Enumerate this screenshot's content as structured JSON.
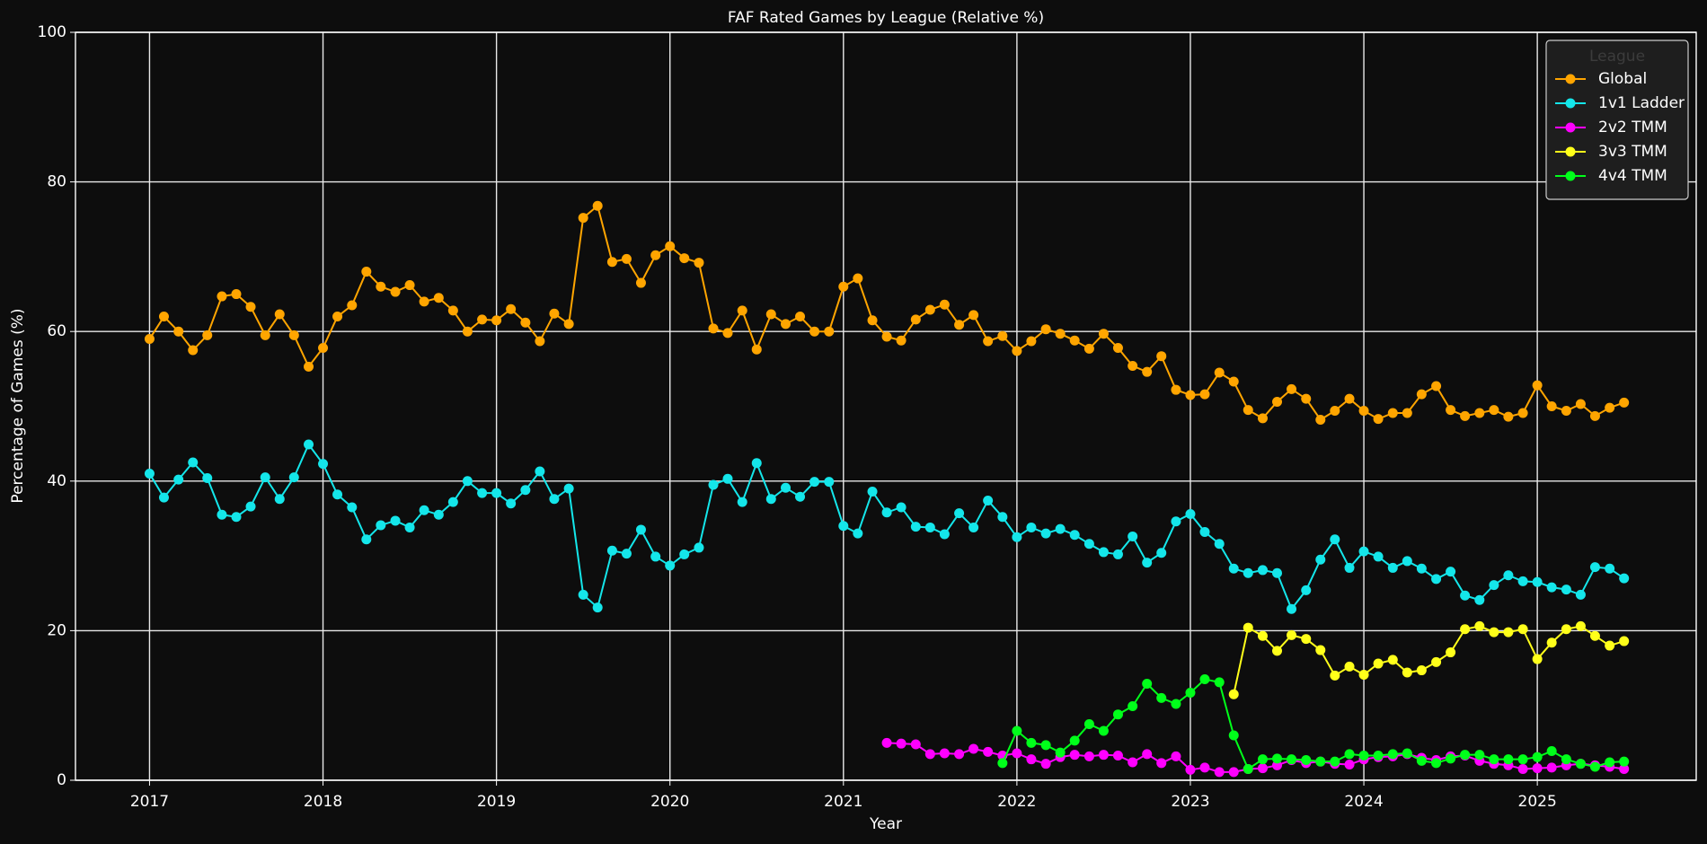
{
  "chart_data": {
    "type": "line",
    "title": "FAF Rated Games by League (Relative %)",
    "x_label": "Year",
    "y_label": "Percentage of Games (%)",
    "xlim": [
      2016.573,
      2025.916
    ],
    "ylim": [
      0,
      100
    ],
    "xticks": [
      2017,
      2018,
      2019,
      2020,
      2021,
      2022,
      2023,
      2024,
      2025
    ],
    "yticks": [
      0,
      20,
      40,
      60,
      80,
      100
    ],
    "grid": true,
    "legend_title": "League",
    "legend_loc": "upper right",
    "x": [
      2017,
      2017.083,
      2017.167,
      2017.25,
      2017.333,
      2017.417,
      2017.5,
      2017.583,
      2017.667,
      2017.75,
      2017.833,
      2017.917,
      2018,
      2018.083,
      2018.167,
      2018.25,
      2018.333,
      2018.417,
      2018.5,
      2018.583,
      2018.667,
      2018.75,
      2018.833,
      2018.917,
      2019,
      2019.083,
      2019.167,
      2019.25,
      2019.333,
      2019.417,
      2019.5,
      2019.583,
      2019.667,
      2019.75,
      2019.833,
      2019.917,
      2020,
      2020.083,
      2020.167,
      2020.25,
      2020.333,
      2020.417,
      2020.5,
      2020.583,
      2020.667,
      2020.75,
      2020.833,
      2020.917,
      2021,
      2021.083,
      2021.167,
      2021.25,
      2021.333,
      2021.417,
      2021.5,
      2021.583,
      2021.667,
      2021.75,
      2021.833,
      2021.917,
      2022,
      2022.083,
      2022.167,
      2022.25,
      2022.333,
      2022.417,
      2022.5,
      2022.583,
      2022.667,
      2022.75,
      2022.833,
      2022.917,
      2023,
      2023.083,
      2023.167,
      2023.25,
      2023.333,
      2023.417,
      2023.5,
      2023.583,
      2023.667,
      2023.75,
      2023.833,
      2023.917,
      2024,
      2024.083,
      2024.167,
      2024.25,
      2024.333,
      2024.417,
      2024.5,
      2024.583,
      2024.667,
      2024.75,
      2024.833,
      2024.917,
      2025,
      2025.083,
      2025.167,
      2025.25,
      2025.333,
      2025.417,
      2025.5
    ],
    "series": [
      {
        "name": "Global",
        "color": "#ffa500",
        "values": [
          59,
          62,
          60,
          57.5,
          59.5,
          64.7,
          65,
          63.3,
          59.5,
          62.3,
          59.5,
          55.3,
          57.8,
          62,
          63.5,
          68,
          66,
          65.3,
          66.2,
          64,
          64.5,
          62.8,
          60,
          61.6,
          61.5,
          63,
          61.2,
          58.7,
          62.4,
          61,
          75.2,
          76.8,
          69.3,
          69.7,
          66.5,
          70.2,
          71.4,
          69.8,
          69.2,
          60.4,
          59.8,
          62.8,
          57.6,
          62.3,
          61,
          62,
          60,
          60,
          66,
          67.1,
          61.5,
          59.3,
          58.8,
          61.6,
          62.9,
          63.6,
          60.9,
          62.2,
          58.7,
          59.4,
          57.4,
          58.7,
          60.3,
          59.7,
          58.8,
          57.7,
          59.7,
          57.8,
          55.4,
          54.6,
          56.7,
          52.2,
          51.5,
          51.6,
          54.5,
          53.3,
          49.5,
          48.4,
          50.6,
          52.3,
          51,
          48.2,
          49.4,
          51,
          49.4,
          48.3,
          49.1,
          49.1,
          51.6,
          52.7,
          49.5,
          48.7,
          49.1,
          49.5,
          48.6,
          49.1,
          52.8,
          50,
          49.4,
          50.3,
          48.7,
          49.8,
          50.5
        ]
      },
      {
        "name": "1v1 Ladder",
        "color": "#14e6ea",
        "values": [
          41,
          37.8,
          40.2,
          42.5,
          40.4,
          35.5,
          35.2,
          36.6,
          40.5,
          37.6,
          40.5,
          44.9,
          42.3,
          38.2,
          36.5,
          32.2,
          34.1,
          34.7,
          33.8,
          36.1,
          35.5,
          37.2,
          40,
          38.4,
          38.4,
          37,
          38.8,
          41.3,
          37.6,
          39,
          24.8,
          23.1,
          30.7,
          30.3,
          33.5,
          29.9,
          28.7,
          30.2,
          31.1,
          39.5,
          40.3,
          37.2,
          42.4,
          37.6,
          39.1,
          37.9,
          39.9,
          39.9,
          34,
          33,
          38.6,
          35.8,
          36.5,
          33.9,
          33.8,
          32.9,
          35.7,
          33.8,
          37.4,
          35.2,
          32.5,
          33.8,
          33,
          33.6,
          32.8,
          31.6,
          30.5,
          30.2,
          32.6,
          29.1,
          30.4,
          34.6,
          35.6,
          33.2,
          31.6,
          28.3,
          27.7,
          28.1,
          27.7,
          22.9,
          25.4,
          29.5,
          32.2,
          28.4,
          30.6,
          29.9,
          28.4,
          29.3,
          28.3,
          26.9,
          27.9,
          24.7,
          24.1,
          26.1,
          27.4,
          26.6,
          26.5,
          25.8,
          25.5,
          24.8,
          28.5,
          28.3,
          27
        ]
      },
      {
        "name": "2v2 TMM",
        "color": "#ff00ff",
        "values": [
          null,
          null,
          null,
          null,
          null,
          null,
          null,
          null,
          null,
          null,
          null,
          null,
          null,
          null,
          null,
          null,
          null,
          null,
          null,
          null,
          null,
          null,
          null,
          null,
          null,
          null,
          null,
          null,
          null,
          null,
          null,
          null,
          null,
          null,
          null,
          null,
          null,
          null,
          null,
          null,
          null,
          null,
          null,
          null,
          null,
          null,
          null,
          null,
          null,
          null,
          null,
          5,
          4.9,
          4.8,
          3.5,
          3.6,
          3.5,
          4.2,
          3.8,
          3.3,
          3.6,
          2.8,
          2.2,
          3.1,
          3.4,
          3.2,
          3.4,
          3.3,
          2.4,
          3.5,
          2.3,
          3.2,
          1.4,
          1.7,
          1.1,
          1.1,
          1.5,
          1.6,
          2,
          2.7,
          2.3,
          2.5,
          2.2,
          2.1,
          2.8,
          3.1,
          3.2,
          3.5,
          3,
          2.7,
          3.2,
          3.3,
          2.6,
          2.2,
          2,
          1.5,
          1.6,
          1.7,
          2,
          2.2,
          2,
          1.8,
          1.5
        ]
      },
      {
        "name": "3v3 TMM",
        "color": "#ffff1a",
        "values": [
          null,
          null,
          null,
          null,
          null,
          null,
          null,
          null,
          null,
          null,
          null,
          null,
          null,
          null,
          null,
          null,
          null,
          null,
          null,
          null,
          null,
          null,
          null,
          null,
          null,
          null,
          null,
          null,
          null,
          null,
          null,
          null,
          null,
          null,
          null,
          null,
          null,
          null,
          null,
          null,
          null,
          null,
          null,
          null,
          null,
          null,
          null,
          null,
          null,
          null,
          null,
          null,
          null,
          null,
          null,
          null,
          null,
          null,
          null,
          null,
          null,
          null,
          null,
          null,
          null,
          null,
          null,
          null,
          null,
          null,
          null,
          null,
          null,
          null,
          null,
          11.5,
          20.4,
          19.3,
          17.3,
          19.4,
          18.9,
          17.4,
          14,
          15.2,
          14.1,
          15.6,
          16.1,
          14.4,
          14.7,
          15.8,
          17.1,
          20.2,
          20.6,
          19.8,
          19.8,
          20.2,
          16.2,
          18.4,
          20.2,
          20.6,
          19.3,
          18,
          18.6
        ]
      },
      {
        "name": "4v4 TMM",
        "color": "#00ff1a",
        "values": [
          null,
          null,
          null,
          null,
          null,
          null,
          null,
          null,
          null,
          null,
          null,
          null,
          null,
          null,
          null,
          null,
          null,
          null,
          null,
          null,
          null,
          null,
          null,
          null,
          null,
          null,
          null,
          null,
          null,
          null,
          null,
          null,
          null,
          null,
          null,
          null,
          null,
          null,
          null,
          null,
          null,
          null,
          null,
          null,
          null,
          null,
          null,
          null,
          null,
          null,
          null,
          null,
          null,
          null,
          null,
          null,
          null,
          null,
          null,
          2.3,
          6.6,
          5,
          4.7,
          3.7,
          5.3,
          7.5,
          6.6,
          8.8,
          9.9,
          12.9,
          11,
          10.2,
          11.7,
          13.5,
          13.1,
          6,
          1.5,
          2.8,
          2.9,
          2.8,
          2.7,
          2.5,
          2.5,
          3.5,
          3.3,
          3.3,
          3.5,
          3.6,
          2.6,
          2.3,
          2.9,
          3.4,
          3.4,
          2.8,
          2.8,
          2.8,
          3.1,
          3.9,
          2.8,
          2.2,
          1.8,
          2.4,
          2.5
        ]
      }
    ]
  }
}
